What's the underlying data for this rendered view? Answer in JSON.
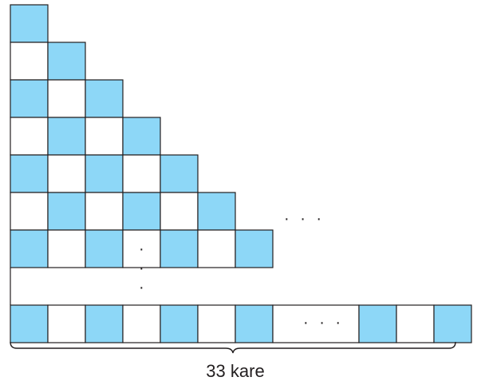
{
  "diagram": {
    "fill_color": "#8dd7f7",
    "empty_color": "#ffffff",
    "stroke_color": "#231f20",
    "staircase_rows": 7,
    "bottom_row_count": 33,
    "bottom_row_pattern": [
      "filled",
      "empty",
      "filled",
      "empty",
      "filled",
      "empty",
      "filled",
      "gap",
      "filled",
      "empty",
      "filled"
    ],
    "row_ellipsis": "· · ·",
    "bottom_ellipsis": "· · ·",
    "vertical_ellipsis": "·",
    "brace_label": "33 kare"
  }
}
